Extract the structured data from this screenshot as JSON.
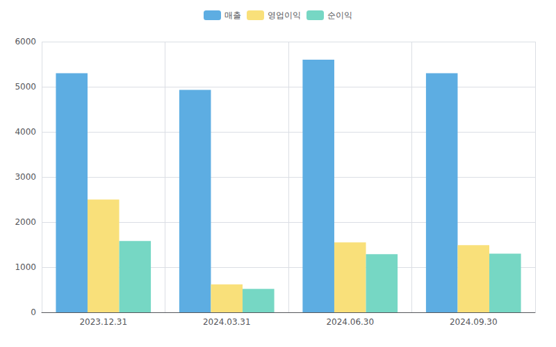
{
  "chart_data": {
    "type": "bar",
    "categories": [
      "2023.12.31",
      "2024.03.31",
      "2024.06.30",
      "2024.09.30"
    ],
    "series": [
      {
        "name": "매출",
        "color": "#5DADE2",
        "values": [
          5300,
          4930,
          5600,
          5300
        ]
      },
      {
        "name": "영업이익",
        "color": "#F9E07A",
        "values": [
          2500,
          620,
          1550,
          1490
        ]
      },
      {
        "name": "순이익",
        "color": "#76D7C4",
        "values": [
          1580,
          520,
          1290,
          1300
        ]
      }
    ],
    "ylim": [
      0,
      6000
    ],
    "yticks": [
      0,
      1000,
      2000,
      3000,
      4000,
      5000,
      6000
    ],
    "grid": true,
    "legend": "top"
  }
}
